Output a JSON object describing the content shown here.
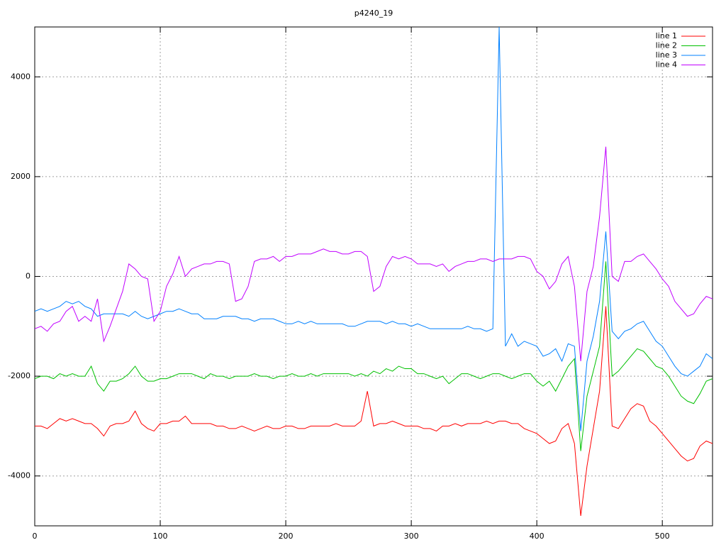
{
  "chart_data": {
    "type": "line",
    "title": "p4240_19",
    "x": [
      0,
      5,
      10,
      15,
      20,
      25,
      30,
      35,
      40,
      45,
      50,
      55,
      60,
      65,
      70,
      75,
      80,
      85,
      90,
      95,
      100,
      105,
      110,
      115,
      120,
      125,
      130,
      135,
      140,
      145,
      150,
      155,
      160,
      165,
      170,
      175,
      180,
      185,
      190,
      195,
      200,
      205,
      210,
      215,
      220,
      225,
      230,
      235,
      240,
      245,
      250,
      255,
      260,
      265,
      270,
      275,
      280,
      285,
      290,
      295,
      300,
      305,
      310,
      315,
      320,
      325,
      330,
      335,
      340,
      345,
      350,
      355,
      360,
      365,
      370,
      375,
      380,
      385,
      390,
      395,
      400,
      405,
      410,
      415,
      420,
      425,
      430,
      435,
      440,
      445,
      450,
      455,
      460,
      465,
      470,
      475,
      480,
      485,
      490,
      495,
      500,
      505,
      510,
      515,
      520,
      525,
      530,
      535,
      540
    ],
    "series": [
      {
        "name": "line 1",
        "color": "#ff0000",
        "values": [
          -3000,
          -3000,
          -3050,
          -2950,
          -2850,
          -2900,
          -2850,
          -2900,
          -2950,
          -2950,
          -3050,
          -3200,
          -3000,
          -2950,
          -2950,
          -2900,
          -2700,
          -2950,
          -3050,
          -3100,
          -2950,
          -2950,
          -2900,
          -2900,
          -2800,
          -2950,
          -2950,
          -2950,
          -2950,
          -3000,
          -3000,
          -3050,
          -3050,
          -3000,
          -3050,
          -3100,
          -3050,
          -3000,
          -3050,
          -3050,
          -3000,
          -3000,
          -3050,
          -3050,
          -3000,
          -3000,
          -3000,
          -3000,
          -2950,
          -3000,
          -3000,
          -3000,
          -2900,
          -2300,
          -3000,
          -2950,
          -2950,
          -2900,
          -2950,
          -3000,
          -3000,
          -3000,
          -3050,
          -3050,
          -3100,
          -3000,
          -3000,
          -2950,
          -3000,
          -2950,
          -2950,
          -2950,
          -2900,
          -2950,
          -2900,
          -2900,
          -2950,
          -2950,
          -3050,
          -3100,
          -3150,
          -3250,
          -3350,
          -3300,
          -3050,
          -2950,
          -3350,
          -4800,
          -3800,
          -3050,
          -2300,
          -600,
          -3000,
          -3050,
          -2850,
          -2650,
          -2550,
          -2600,
          -2900,
          -3000,
          -3150,
          -3300,
          -3450,
          -3600,
          -3700,
          -3650,
          -3400,
          -3300,
          -3350
        ]
      },
      {
        "name": "line 2",
        "color": "#00c000",
        "values": [
          -2050,
          -2000,
          -2000,
          -2050,
          -1950,
          -2000,
          -1950,
          -2000,
          -2000,
          -1800,
          -2150,
          -2300,
          -2100,
          -2100,
          -2050,
          -1950,
          -1800,
          -2000,
          -2100,
          -2100,
          -2050,
          -2050,
          -2000,
          -1950,
          -1950,
          -1950,
          -2000,
          -2050,
          -1950,
          -2000,
          -2000,
          -2050,
          -2000,
          -2000,
          -2000,
          -1950,
          -2000,
          -2000,
          -2050,
          -2000,
          -2000,
          -1950,
          -2000,
          -2000,
          -1950,
          -2000,
          -1950,
          -1950,
          -1950,
          -1950,
          -1950,
          -2000,
          -1950,
          -2000,
          -1900,
          -1950,
          -1850,
          -1900,
          -1800,
          -1850,
          -1850,
          -1950,
          -1950,
          -2000,
          -2050,
          -2000,
          -2150,
          -2050,
          -1950,
          -1950,
          -2000,
          -2050,
          -2000,
          -1950,
          -1950,
          -2000,
          -2050,
          -2000,
          -1950,
          -1950,
          -2100,
          -2200,
          -2100,
          -2300,
          -2050,
          -1800,
          -1650,
          -3500,
          -2400,
          -1900,
          -1400,
          300,
          -2000,
          -1900,
          -1750,
          -1600,
          -1450,
          -1500,
          -1650,
          -1800,
          -1850,
          -2000,
          -2200,
          -2400,
          -2500,
          -2550,
          -2350,
          -2100,
          -2050
        ]
      },
      {
        "name": "line 3",
        "color": "#0080ff",
        "values": [
          -700,
          -650,
          -700,
          -650,
          -600,
          -500,
          -550,
          -500,
          -600,
          -650,
          -800,
          -750,
          -750,
          -750,
          -750,
          -800,
          -700,
          -800,
          -850,
          -800,
          -750,
          -700,
          -700,
          -650,
          -700,
          -750,
          -750,
          -850,
          -850,
          -850,
          -800,
          -800,
          -800,
          -850,
          -850,
          -900,
          -850,
          -850,
          -850,
          -900,
          -950,
          -950,
          -900,
          -950,
          -900,
          -950,
          -950,
          -950,
          -950,
          -950,
          -1000,
          -1000,
          -950,
          -900,
          -900,
          -900,
          -950,
          -900,
          -950,
          -950,
          -1000,
          -950,
          -1000,
          -1050,
          -1050,
          -1050,
          -1050,
          -1050,
          -1050,
          -1000,
          -1050,
          -1050,
          -1100,
          -1050,
          5000,
          -1400,
          -1150,
          -1400,
          -1300,
          -1350,
          -1400,
          -1600,
          -1550,
          -1450,
          -1700,
          -1350,
          -1400,
          -3100,
          -1700,
          -1200,
          -500,
          900,
          -1100,
          -1250,
          -1100,
          -1050,
          -950,
          -900,
          -1100,
          -1300,
          -1400,
          -1600,
          -1800,
          -1950,
          -2000,
          -1900,
          -1800,
          -1550,
          -1650
        ]
      },
      {
        "name": "line 4",
        "color": "#c000ff",
        "values": [
          -1050,
          -1000,
          -1100,
          -950,
          -900,
          -700,
          -600,
          -900,
          -800,
          -900,
          -450,
          -1300,
          -1000,
          -650,
          -300,
          250,
          150,
          0,
          -50,
          -900,
          -700,
          -200,
          50,
          400,
          0,
          150,
          200,
          250,
          250,
          300,
          300,
          250,
          -500,
          -450,
          -200,
          300,
          350,
          350,
          400,
          300,
          400,
          400,
          450,
          450,
          450,
          500,
          550,
          500,
          500,
          450,
          450,
          500,
          500,
          400,
          -300,
          -200,
          200,
          400,
          350,
          400,
          350,
          250,
          250,
          250,
          200,
          250,
          100,
          200,
          250,
          300,
          300,
          350,
          350,
          300,
          350,
          350,
          350,
          400,
          400,
          350,
          100,
          0,
          -250,
          -100,
          250,
          400,
          -200,
          -1700,
          -300,
          200,
          1200,
          2600,
          0,
          -100,
          300,
          300,
          400,
          450,
          300,
          150,
          -50,
          -200,
          -500,
          -650,
          -800,
          -750,
          -550,
          -400,
          -450
        ]
      }
    ],
    "xlim": [
      0,
      540
    ],
    "ylim": [
      -5000,
      5000
    ],
    "xticks": [
      0,
      100,
      200,
      300,
      400,
      500
    ],
    "yticks": [
      -4000,
      -2000,
      0,
      2000,
      4000
    ],
    "grid": true,
    "legend": "top-right"
  }
}
